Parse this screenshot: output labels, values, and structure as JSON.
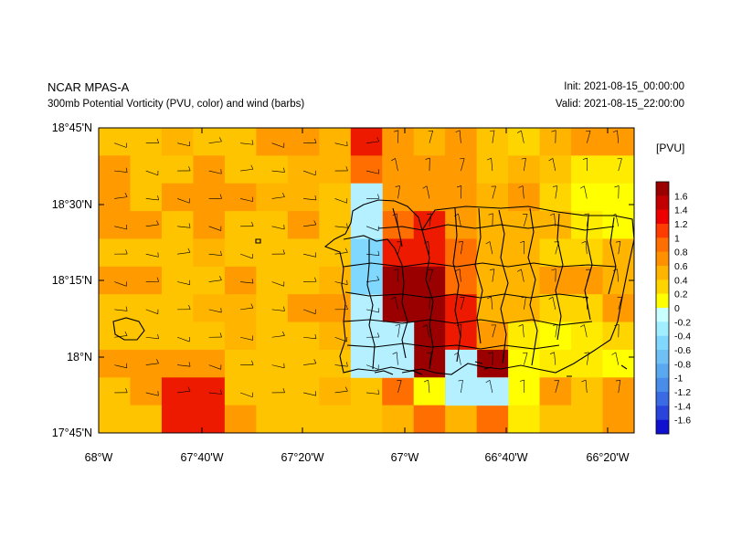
{
  "header": {
    "model": "NCAR MPAS-A",
    "field": "300mb Potential Vorticity (PVU, color) and wind (barbs)",
    "init": "Init: 2021-08-15_00:00:00",
    "valid": "Valid: 2021-08-15_22:00:00"
  },
  "colorbar": {
    "unit": "[PVU]",
    "labels": [
      "1.6",
      "1.4",
      "1.2",
      "1",
      "0.8",
      "0.6",
      "0.4",
      "0.2",
      "0",
      "-0.2",
      "-0.4",
      "-0.6",
      "-0.8",
      "-1",
      "-1.2",
      "-1.4",
      "-1.6"
    ],
    "colors": [
      "#9a0000",
      "#c30000",
      "#ee0000",
      "#ff3c00",
      "#ff6e00",
      "#ff9100",
      "#ffb400",
      "#ffd500",
      "#ffff00",
      "#c8ffff",
      "#a0eeff",
      "#80d8ff",
      "#6ec0f5",
      "#5aa8f0",
      "#4a8cea",
      "#3a6ae4",
      "#2844dc",
      "#1010d0"
    ]
  },
  "axes": {
    "lat_labels": [
      "18°45'N",
      "18°30'N",
      "18°15'N",
      "18°N",
      "17°45'N"
    ],
    "lon_labels": [
      "68°W",
      "67°40'W",
      "67°20'W",
      "67°W",
      "66°40'W",
      "66°20'W"
    ]
  },
  "grid": {
    "rows": 10,
    "cols": 17,
    "cells": [
      [
        6,
        6,
        5,
        6,
        6,
        7,
        7,
        5,
        9,
        7,
        5,
        7,
        6,
        2,
        5,
        7,
        7,
        5
      ],
      [
        7,
        6,
        6,
        7,
        6,
        6,
        5,
        5,
        8,
        7,
        7,
        7,
        6,
        5,
        6,
        1,
        1,
        0
      ],
      [
        7,
        6,
        7,
        7,
        7,
        5,
        5,
        6,
        7,
        7,
        7,
        7,
        5,
        4,
        2,
        0,
        0,
        0
      ],
      [
        7,
        7,
        6,
        7,
        6,
        6,
        7,
        6,
        7,
        8,
        9,
        7,
        5,
        5,
        3,
        1,
        0,
        0
      ],
      [
        6,
        6,
        6,
        5,
        6,
        6,
        6,
        6,
        7,
        9,
        9,
        8,
        5,
        5,
        2,
        2,
        3,
        7
      ],
      [
        7,
        7,
        6,
        6,
        7,
        6,
        6,
        5,
        6,
        10,
        10,
        8,
        5,
        5,
        4,
        4,
        3,
        4
      ],
      [
        6,
        6,
        6,
        5,
        5,
        6,
        4,
        4,
        6,
        10,
        10,
        9,
        3,
        3,
        2,
        2,
        4,
        4
      ],
      [
        6,
        6,
        6,
        6,
        5,
        6,
        6,
        5,
        5,
        10,
        10,
        9,
        4,
        1,
        0,
        1,
        2,
        6
      ],
      [
        7,
        7,
        7,
        7,
        6,
        6,
        6,
        6,
        6,
        10,
        10,
        9,
        10,
        0,
        1,
        1,
        0,
        9
      ],
      [
        6,
        7,
        9,
        9,
        6,
        6,
        6,
        5,
        6,
        8,
        0,
        7,
        8,
        0,
        7,
        6,
        7,
        9
      ],
      [
        6,
        6,
        9,
        9,
        7,
        6,
        6,
        6,
        6,
        5,
        8,
        3,
        8,
        1,
        6,
        6,
        7,
        9
      ]
    ]
  }
}
